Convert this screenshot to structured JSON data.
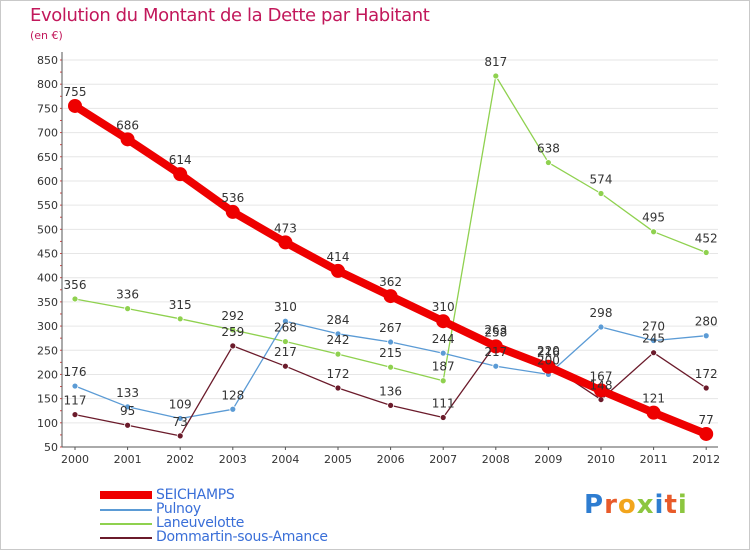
{
  "title": "Evolution du Montant de la Dette par Habitant",
  "unit": "(en €)",
  "logo": "Proxiti",
  "colors": {
    "title": "#c2185b",
    "axis": "#555555",
    "grid": "#e6e6e6",
    "legend_text": "#3a6fd8"
  },
  "chart_data": {
    "type": "line",
    "x": [
      "2000",
      "2001",
      "2002",
      "2003",
      "2004",
      "2005",
      "2006",
      "2007",
      "2008",
      "2009",
      "2010",
      "2011",
      "2012"
    ],
    "ylim": [
      50,
      850
    ],
    "yticks": [
      50,
      100,
      150,
      200,
      250,
      300,
      350,
      400,
      450,
      500,
      550,
      600,
      650,
      700,
      750,
      800,
      850
    ],
    "grid": true,
    "legend_position": "bottom-left",
    "series": [
      {
        "name": "SEICHAMPS",
        "color": "#ee0000",
        "width": 8,
        "marker": 7,
        "values": [
          755,
          686,
          614,
          536,
          473,
          414,
          362,
          310,
          258,
          216,
          167,
          121,
          77
        ]
      },
      {
        "name": "Pulnoy",
        "color": "#5b9bd5",
        "width": 1.3,
        "marker": 3,
        "values": [
          176,
          133,
          109,
          128,
          310,
          284,
          267,
          244,
          217,
          200,
          298,
          270,
          280
        ]
      },
      {
        "name": "Laneuvelotte",
        "color": "#8fd14f",
        "width": 1.3,
        "marker": 3,
        "values": [
          356,
          336,
          315,
          292,
          268,
          242,
          215,
          187,
          817,
          638,
          574,
          495,
          452
        ]
      },
      {
        "name": "Dommartin-sous-Amance",
        "color": "#6b1b2b",
        "width": 1.3,
        "marker": 3,
        "values": [
          117,
          95,
          73,
          259,
          217,
          172,
          136,
          111,
          263,
          220,
          148,
          245,
          172
        ]
      }
    ]
  }
}
